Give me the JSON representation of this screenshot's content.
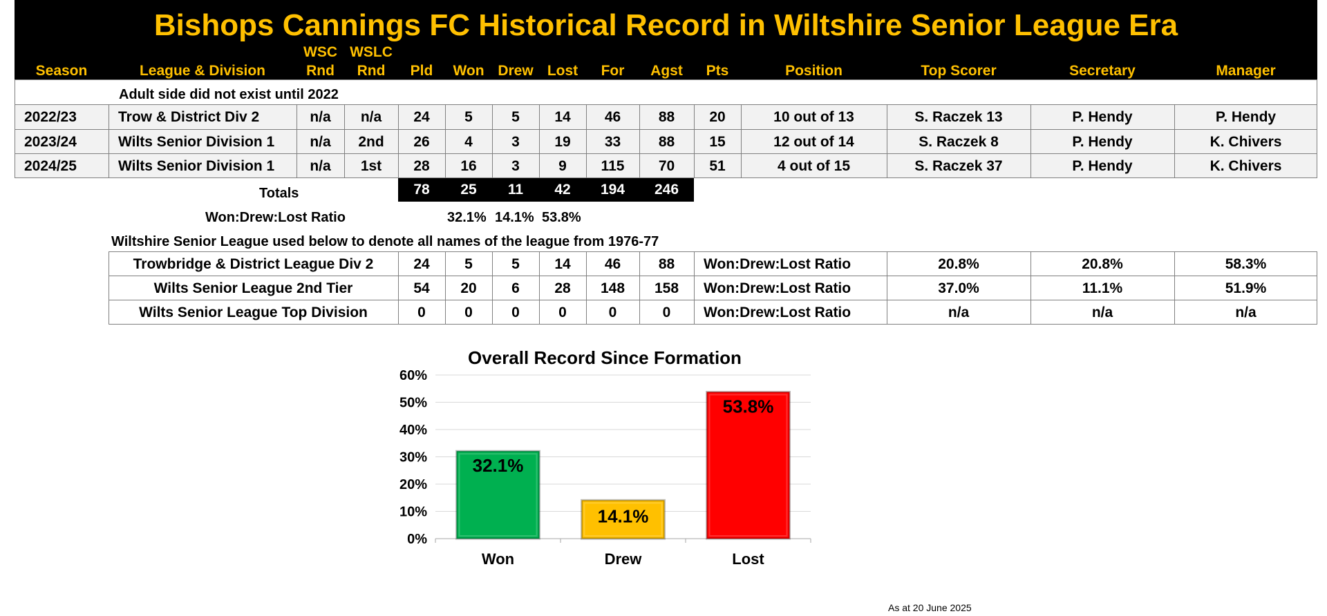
{
  "title": "Bishops Cannings FC Historical Record in Wiltshire Senior League Era",
  "headers": {
    "season": "Season",
    "league": "League & Division",
    "wsc_top": "WSC",
    "wsc_bottom": "Rnd",
    "wslc_top": "WSLC",
    "wslc_bottom": "Rnd",
    "pld": "Pld",
    "won": "Won",
    "drew": "Drew",
    "lost": "Lost",
    "for": "For",
    "agst": "Agst",
    "pts": "Pts",
    "position": "Position",
    "top_scorer": "Top Scorer",
    "secretary": "Secretary",
    "manager": "Manager"
  },
  "note_row": "Adult side did not exist until 2022",
  "seasons": [
    {
      "season": "2022/23",
      "league": "Trow & District Div 2",
      "wsc": "n/a",
      "wslc": "n/a",
      "pld": "24",
      "won": "5",
      "drew": "5",
      "lost": "14",
      "for": "46",
      "agst": "88",
      "pts": "20",
      "position": "10 out of  13",
      "top_scorer": "S. Raczek 13",
      "secretary": "P. Hendy",
      "manager": "P. Hendy"
    },
    {
      "season": "2023/24",
      "league": "Wilts Senior Division 1",
      "wsc": "n/a",
      "wslc": "2nd",
      "pld": "26",
      "won": "4",
      "drew": "3",
      "lost": "19",
      "for": "33",
      "agst": "88",
      "pts": "15",
      "position": "12 out of  14",
      "top_scorer": "S. Raczek 8",
      "secretary": "P. Hendy",
      "manager": "K. Chivers"
    },
    {
      "season": "2024/25",
      "league": "Wilts Senior Division 1",
      "wsc": "n/a",
      "wslc": "1st",
      "pld": "28",
      "won": "16",
      "drew": "3",
      "lost": "9",
      "for": "115",
      "agst": "70",
      "pts": "51",
      "position": "4 out of  15",
      "top_scorer": "S. Raczek 37",
      "secretary": "P. Hendy",
      "manager": "K. Chivers"
    }
  ],
  "totals": {
    "label": "Totals",
    "pld": "78",
    "won": "25",
    "drew": "11",
    "lost": "42",
    "for": "194",
    "agst": "246"
  },
  "ratio": {
    "label": "Won:Drew:Lost Ratio",
    "won": "32.1%",
    "drew": "14.1%",
    "lost": "53.8%"
  },
  "league_note": "Wiltshire Senior League used below to denote all names of the league from 1976-77",
  "summary": [
    {
      "name": "Trowbridge & District League Div 2",
      "pld": "24",
      "won": "5",
      "drew": "5",
      "lost": "14",
      "for": "46",
      "agst": "88",
      "ratio_label": "Won:Drew:Lost Ratio",
      "won_pct": "20.8%",
      "drew_pct": "20.8%",
      "lost_pct": "58.3%"
    },
    {
      "name": "Wilts Senior League 2nd Tier",
      "pld": "54",
      "won": "20",
      "drew": "6",
      "lost": "28",
      "for": "148",
      "agst": "158",
      "ratio_label": "Won:Drew:Lost Ratio",
      "won_pct": "37.0%",
      "drew_pct": "11.1%",
      "lost_pct": "51.9%"
    },
    {
      "name": "Wilts Senior League Top Division",
      "pld": "0",
      "won": "0",
      "drew": "0",
      "lost": "0",
      "for": "0",
      "agst": "0",
      "ratio_label": "Won:Drew:Lost Ratio",
      "won_pct": "n/a",
      "drew_pct": "n/a",
      "lost_pct": "n/a"
    }
  ],
  "chart_data": {
    "type": "bar",
    "title": "Overall Record Since Formation",
    "categories": [
      "Won",
      "Drew",
      "Lost"
    ],
    "values": [
      32.1,
      14.1,
      53.8
    ],
    "data_labels": [
      "32.1%",
      "14.1%",
      "53.8%"
    ],
    "colors": [
      "#00B050",
      "#FFC000",
      "#FF0000"
    ],
    "ylim": [
      0,
      60
    ],
    "yticks": [
      "0%",
      "10%",
      "20%",
      "30%",
      "40%",
      "50%",
      "60%"
    ],
    "grid": true
  },
  "footer": "As at  20 June 2025"
}
